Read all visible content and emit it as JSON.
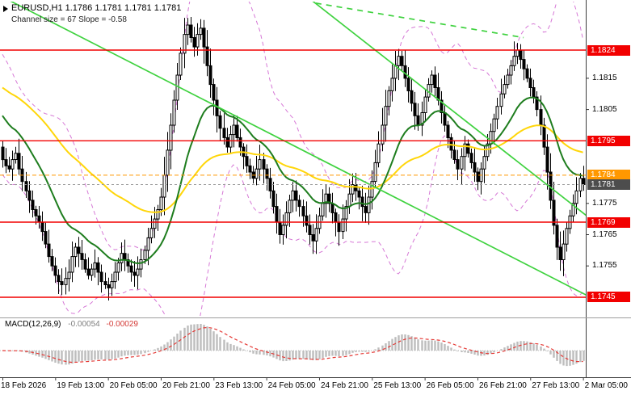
{
  "colors": {
    "background": "#ffffff",
    "candle": "#000000",
    "bull_fill": "#ffffff",
    "ma_yellow": "#ffd60a",
    "ma_green": "#1e7d1e",
    "bands_violet": "#d678d6",
    "trend_green": "#3fd23f",
    "level_red": "#f20000",
    "alert_orange": "#ff9800",
    "bid_label": "#4d4d4d",
    "macd_histogram": "#bdbdbd",
    "macd_signal": "#e53935",
    "axis_text": "#000000",
    "frame": "#3c3c3c",
    "separator": "#9e9e9e"
  },
  "chart_data": {
    "type": "candlestick",
    "symbol": "EURUSD",
    "timeframe": "H1",
    "title": "EURUSD,H1 1.1786 1.1781 1.1781 1.1781",
    "ohlc": {
      "open": "1.1786",
      "high": "1.1781",
      "low": "1.1781",
      "close": "1.1781"
    },
    "channel_annotation": {
      "text": "Channel size = 67  Slope = -0.58",
      "size": 67,
      "slope": -0.58
    },
    "levels": [
      1.1824,
      1.1795,
      1.1769,
      1.1745
    ],
    "alert_line": 1.1784,
    "bid_price": 1.1781,
    "y_range": [
      1.1739,
      1.184
    ],
    "price_scale": [
      {
        "label": "1.1824",
        "type": "level-red"
      },
      {
        "label": "1.1815",
        "type": "normal"
      },
      {
        "label": "1.1805",
        "type": "normal"
      },
      {
        "label": "1.1795",
        "type": "level-red"
      },
      {
        "label": "1.1784",
        "type": "alert-orange"
      },
      {
        "label": "1.1781",
        "type": "bid-dark"
      },
      {
        "label": "1.1775",
        "type": "normal"
      },
      {
        "label": "1.1769",
        "type": "level-red"
      },
      {
        "label": "1.1765",
        "type": "normal"
      },
      {
        "label": "1.1755",
        "type": "normal"
      },
      {
        "label": "1.1745",
        "type": "level-red"
      }
    ],
    "time_labels": [
      "18 Feb 2026",
      "19 Feb 13:00",
      "20 Feb 05:00",
      "20 Feb 21:00",
      "23 Feb 13:00",
      "24 Feb 05:00",
      "24 Feb 21:00",
      "25 Feb 13:00",
      "26 Feb 05:00",
      "26 Feb 21:00",
      "27 Feb 13:00",
      "2 Mar 05:00"
    ],
    "bars_per_label": 16,
    "closes": [
      1.1789,
      1.1787,
      1.1786,
      1.1789,
      1.1791,
      1.1786,
      1.1782,
      1.1779,
      1.1776,
      1.1773,
      1.1771,
      1.1769,
      1.1766,
      1.1762,
      1.1758,
      1.1755,
      1.1752,
      1.175,
      1.1749,
      1.1751,
      1.1753,
      1.1758,
      1.1761,
      1.1759,
      1.1757,
      1.1754,
      1.1752,
      1.1754,
      1.1756,
      1.1753,
      1.175,
      1.1749,
      1.1748,
      1.175,
      1.1753,
      1.1756,
      1.1759,
      1.1757,
      1.1755,
      1.1753,
      1.1752,
      1.1754,
      1.1757,
      1.176,
      1.1764,
      1.1767,
      1.177,
      1.1773,
      1.1777,
      1.1784,
      1.1792,
      1.18,
      1.1808,
      1.1816,
      1.1823,
      1.1829,
      1.1832,
      1.1828,
      1.1825,
      1.1829,
      1.1831,
      1.1825,
      1.1819,
      1.1813,
      1.1808,
      1.1803,
      1.1799,
      1.1796,
      1.1793,
      1.1797,
      1.18,
      1.1796,
      1.1793,
      1.179,
      1.1787,
      1.1785,
      1.1783,
      1.1786,
      1.1789,
      1.1786,
      1.1783,
      1.1779,
      1.1774,
      1.1769,
      1.1765,
      1.1768,
      1.1772,
      1.1776,
      1.1779,
      1.1776,
      1.1774,
      1.1771,
      1.1768,
      1.1765,
      1.1763,
      1.1767,
      1.1771,
      1.1775,
      1.1778,
      1.1775,
      1.1772,
      1.1769,
      1.1766,
      1.177,
      1.1774,
      1.1778,
      1.1781,
      1.1779,
      1.1777,
      1.1774,
      1.1772,
      1.1777,
      1.1782,
      1.1788,
      1.1794,
      1.18,
      1.1806,
      1.1811,
      1.1815,
      1.1819,
      1.1822,
      1.1819,
      1.1815,
      1.1811,
      1.1807,
      1.1803,
      1.18,
      1.1804,
      1.1809,
      1.1813,
      1.1816,
      1.1812,
      1.1808,
      1.1804,
      1.18,
      1.1796,
      1.1792,
      1.1789,
      1.1786,
      1.179,
      1.1794,
      1.1791,
      1.1788,
      1.1785,
      1.1782,
      1.1786,
      1.179,
      1.1794,
      1.1798,
      1.1802,
      1.1806,
      1.181,
      1.1813,
      1.1816,
      1.1819,
      1.1822,
      1.1824,
      1.1821,
      1.1818,
      1.1815,
      1.1812,
      1.1809,
      1.1805,
      1.18,
      1.1793,
      1.1785,
      1.1776,
      1.1768,
      1.1761,
      1.1757,
      1.1762,
      1.1767,
      1.1771,
      1.1775,
      1.1779,
      1.1783,
      1.1781
    ],
    "trend_lines": [
      {
        "from_bar": 0,
        "from_price": 1.1841,
        "to_bar": 182,
        "to_price": 1.1743,
        "style": "solid"
      },
      {
        "from_bar": 90,
        "from_price": 1.1843,
        "to_bar": 182,
        "to_price": 1.1767,
        "style": "solid"
      },
      {
        "from_bar": 95,
        "from_price": 1.1839,
        "to_bar": 158,
        "to_price": 1.1828,
        "style": "dashed"
      }
    ],
    "indicators": {
      "ma_green_period": 21,
      "ma_yellow_period": 65,
      "bollinger": {
        "period": 20,
        "deviation": 2
      },
      "macd": {
        "label": "MACD(12,26,9)",
        "value_main": "-0.00054",
        "value_signal": "-0.00029",
        "fast": 12,
        "slow": 26,
        "signal": 9
      }
    }
  }
}
